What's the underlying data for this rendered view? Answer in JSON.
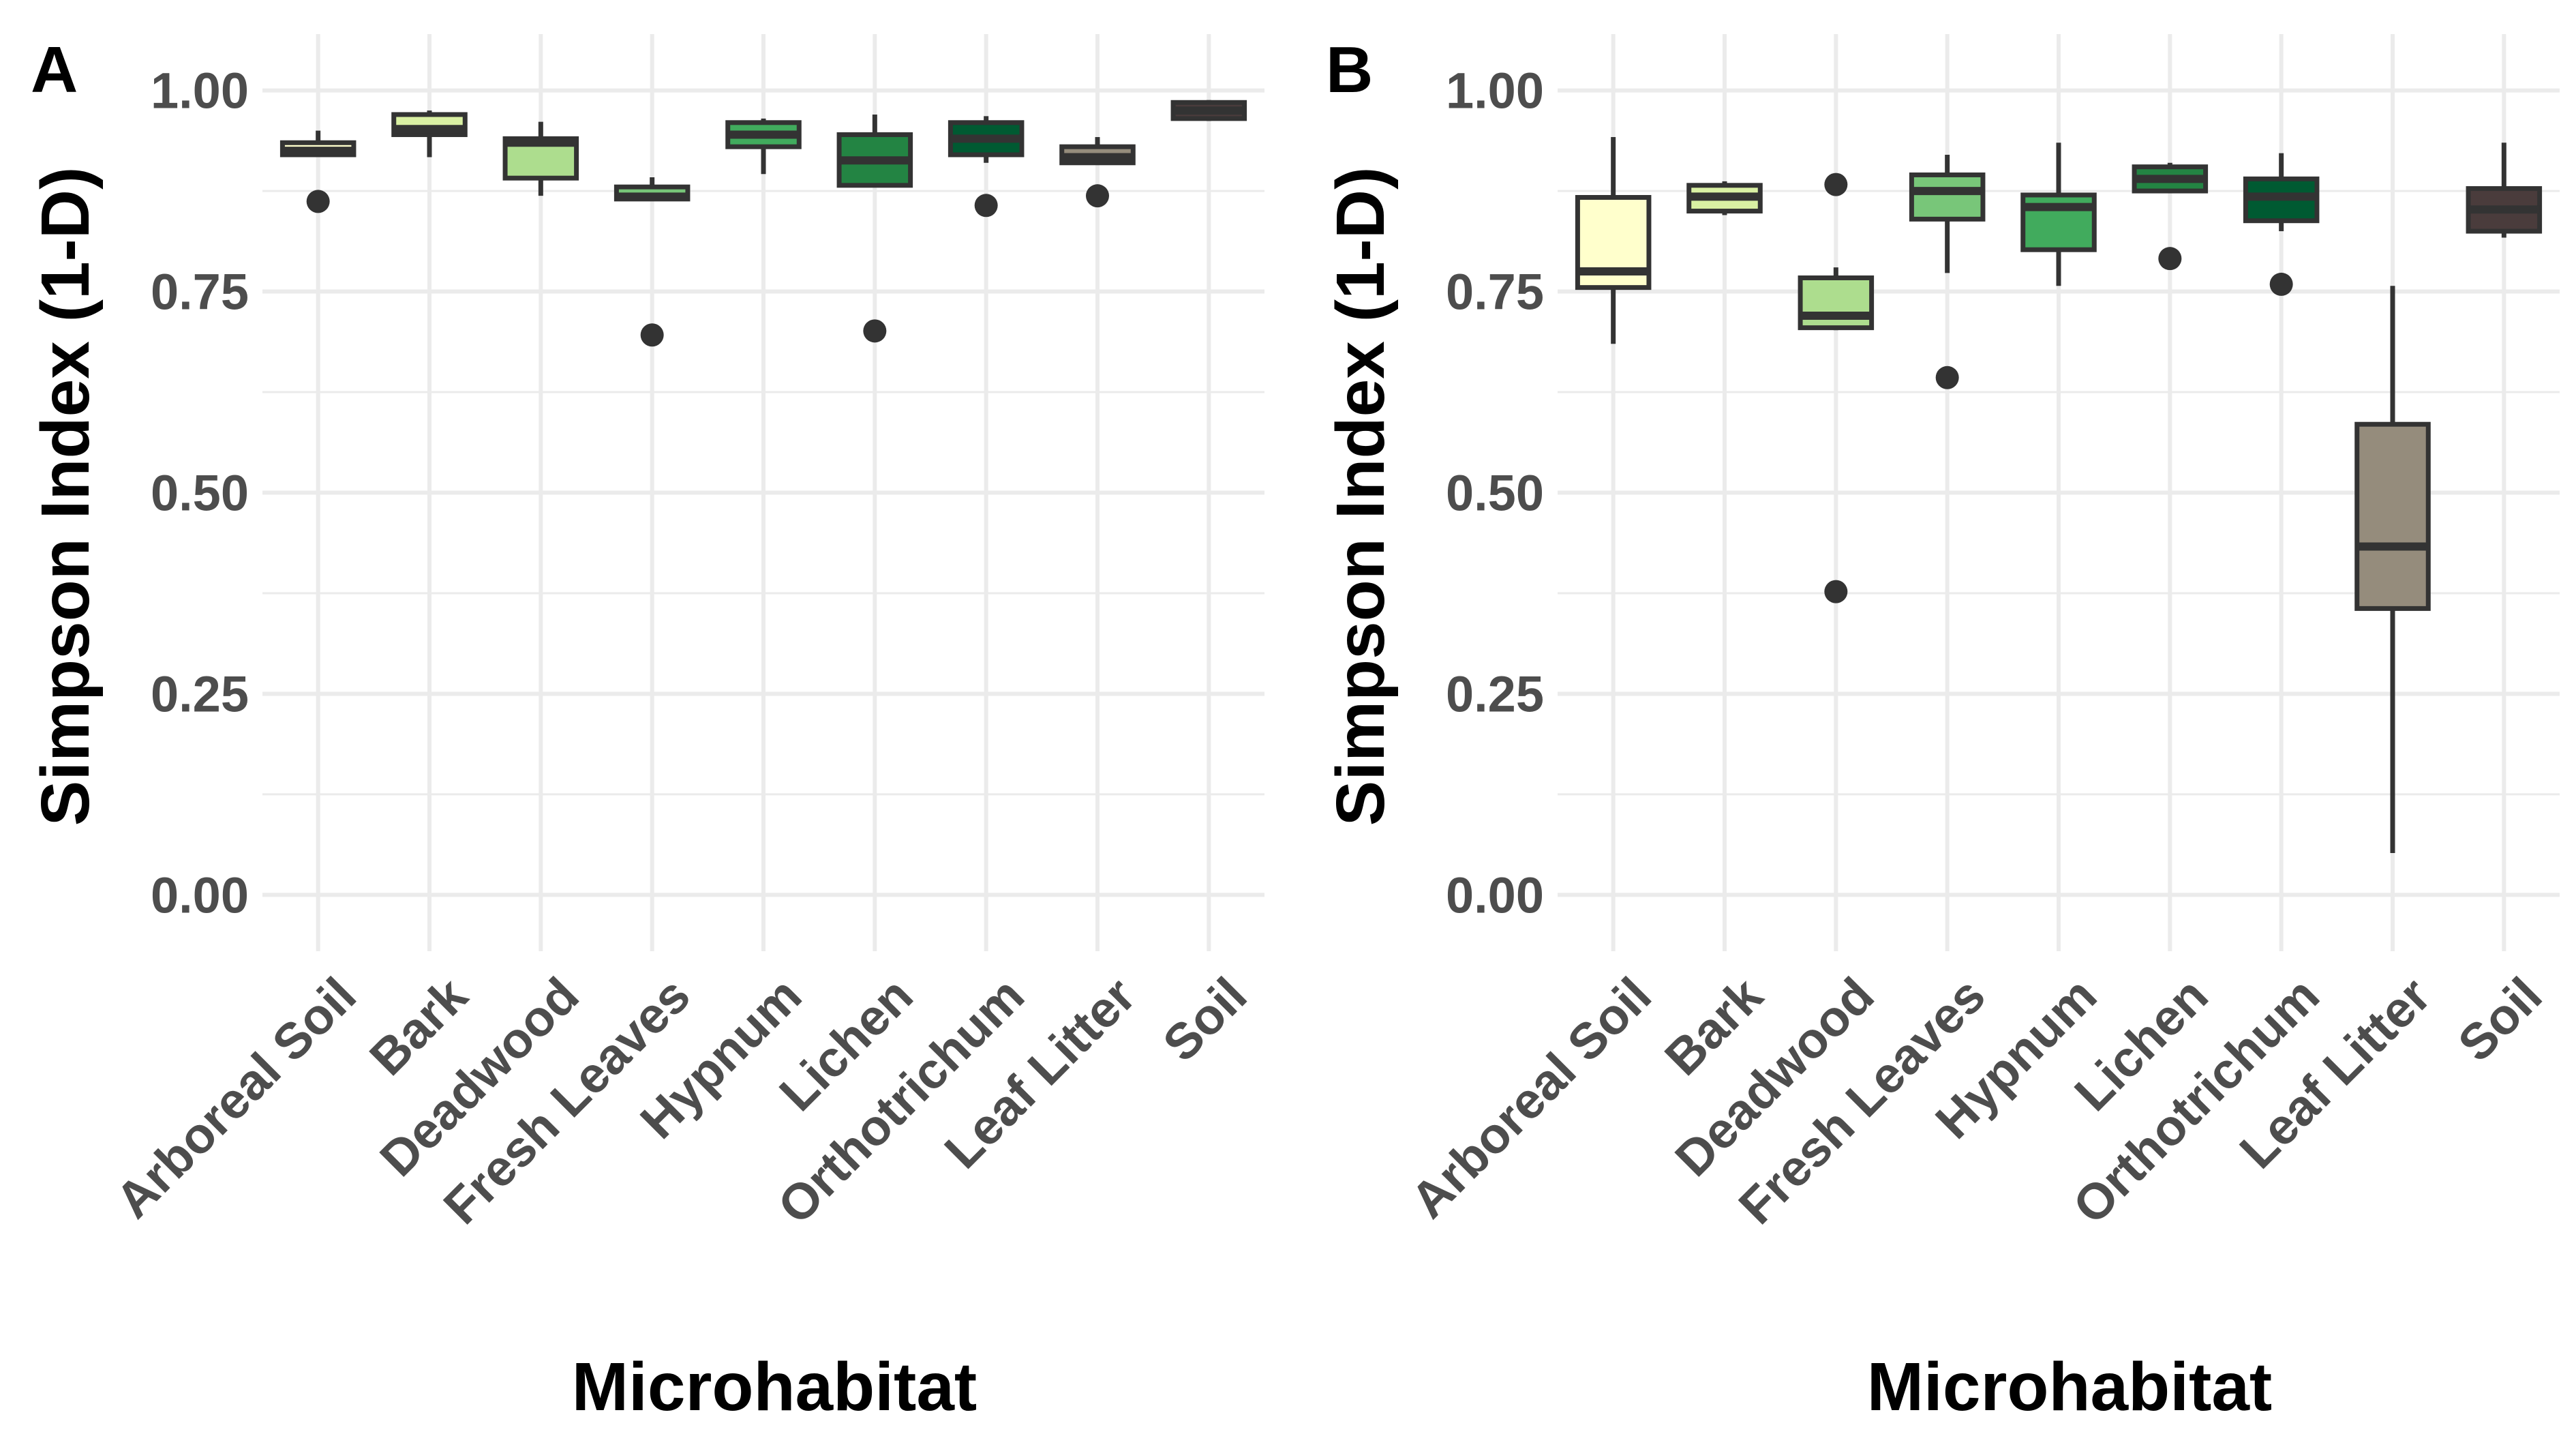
{
  "chart_data": [
    {
      "type": "box",
      "panel_label": "A",
      "xlabel": "Microhabitat",
      "ylabel": "Simpson Index (1-D)",
      "ylim": [
        -0.07,
        1.07
      ],
      "yticks": [
        "0.00",
        "0.25",
        "0.50",
        "0.75",
        "1.00"
      ],
      "grid": true,
      "categories": [
        "Arboreal Soil",
        "Bark",
        "Deadwood",
        "Fresh Leaves",
        "Hypnum",
        "Lichen",
        "Orthotrichum",
        "Leaf Litter",
        "Soil"
      ],
      "colors": [
        "#ffffcc",
        "#d9f0a3",
        "#addd8e",
        "#78c679",
        "#41ab5d",
        "#238443",
        "#005a32",
        "#958c7c",
        "#4a3c3c"
      ],
      "boxes": [
        {
          "category": "Arboreal Soil",
          "whisker_low": 0.92,
          "q1": 0.92,
          "median": 0.925,
          "q3": 0.935,
          "whisker_high": 0.95,
          "outliers": [
            0.862
          ]
        },
        {
          "category": "Bark",
          "whisker_low": 0.917,
          "q1": 0.945,
          "median": 0.952,
          "q3": 0.97,
          "whisker_high": 0.975,
          "outliers": []
        },
        {
          "category": "Deadwood",
          "whisker_low": 0.869,
          "q1": 0.891,
          "median": 0.935,
          "q3": 0.94,
          "whisker_high": 0.961,
          "outliers": []
        },
        {
          "category": "Fresh Leaves",
          "whisker_low": 0.865,
          "q1": 0.865,
          "median": 0.868,
          "q3": 0.88,
          "whisker_high": 0.892,
          "outliers": [
            0.696
          ]
        },
        {
          "category": "Hypnum",
          "whisker_low": 0.896,
          "q1": 0.93,
          "median": 0.945,
          "q3": 0.96,
          "whisker_high": 0.965,
          "outliers": []
        },
        {
          "category": "Lichen",
          "whisker_low": 0.882,
          "q1": 0.882,
          "median": 0.913,
          "q3": 0.945,
          "whisker_high": 0.97,
          "outliers": [
            0.701
          ]
        },
        {
          "category": "Orthotrichum",
          "whisker_low": 0.91,
          "q1": 0.92,
          "median": 0.94,
          "q3": 0.96,
          "whisker_high": 0.968,
          "outliers": [
            0.857
          ]
        },
        {
          "category": "Leaf Litter",
          "whisker_low": 0.91,
          "q1": 0.91,
          "median": 0.917,
          "q3": 0.93,
          "whisker_high": 0.942,
          "outliers": [
            0.869
          ]
        },
        {
          "category": "Soil",
          "whisker_low": 0.962,
          "q1": 0.965,
          "median": 0.975,
          "q3": 0.985,
          "whisker_high": 0.988,
          "outliers": []
        }
      ]
    },
    {
      "type": "box",
      "panel_label": "B",
      "xlabel": "Microhabitat",
      "ylabel": "Simpson Index (1-D)",
      "ylim": [
        -0.07,
        1.07
      ],
      "yticks": [
        "0.00",
        "0.25",
        "0.50",
        "0.75",
        "1.00"
      ],
      "grid": true,
      "categories": [
        "Arboreal Soil",
        "Bark",
        "Deadwood",
        "Fresh Leaves",
        "Hypnum",
        "Lichen",
        "Orthotrichum",
        "Leaf Litter",
        "Soil"
      ],
      "colors": [
        "#ffffcc",
        "#d9f0a3",
        "#addd8e",
        "#78c679",
        "#41ab5d",
        "#238443",
        "#005a32",
        "#958c7c",
        "#4a3c3c"
      ],
      "boxes": [
        {
          "category": "Arboreal Soil",
          "whisker_low": 0.685,
          "q1": 0.755,
          "median": 0.775,
          "q3": 0.867,
          "whisker_high": 0.942,
          "outliers": []
        },
        {
          "category": "Bark",
          "whisker_low": 0.845,
          "q1": 0.85,
          "median": 0.868,
          "q3": 0.882,
          "whisker_high": 0.887,
          "outliers": []
        },
        {
          "category": "Deadwood",
          "whisker_low": 0.702,
          "q1": 0.705,
          "median": 0.72,
          "q3": 0.767,
          "whisker_high": 0.78,
          "outliers": [
            0.377,
            0.883
          ]
        },
        {
          "category": "Fresh Leaves",
          "whisker_low": 0.773,
          "q1": 0.84,
          "median": 0.875,
          "q3": 0.895,
          "whisker_high": 0.92,
          "outliers": [
            0.643
          ]
        },
        {
          "category": "Hypnum",
          "whisker_low": 0.757,
          "q1": 0.802,
          "median": 0.855,
          "q3": 0.87,
          "whisker_high": 0.935,
          "outliers": []
        },
        {
          "category": "Lichen",
          "whisker_low": 0.875,
          "q1": 0.875,
          "median": 0.89,
          "q3": 0.905,
          "whisker_high": 0.91,
          "outliers": [
            0.791
          ]
        },
        {
          "category": "Orthotrichum",
          "whisker_low": 0.825,
          "q1": 0.838,
          "median": 0.868,
          "q3": 0.89,
          "whisker_high": 0.922,
          "outliers": [
            0.759
          ]
        },
        {
          "category": "Leaf Litter",
          "whisker_low": 0.052,
          "q1": 0.356,
          "median": 0.433,
          "q3": 0.585,
          "whisker_high": 0.757,
          "outliers": []
        },
        {
          "category": "Soil",
          "whisker_low": 0.817,
          "q1": 0.825,
          "median": 0.852,
          "q3": 0.878,
          "whisker_high": 0.935,
          "outliers": []
        }
      ]
    }
  ]
}
